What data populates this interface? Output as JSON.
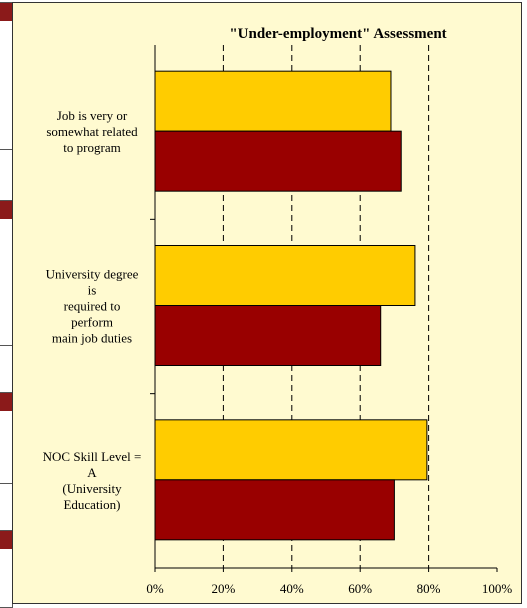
{
  "chart_data": {
    "type": "bar",
    "orientation": "horizontal",
    "title": "\"Under-employment\" Assessment",
    "categories": [
      [
        "Job is very or",
        "somewhat related",
        "to program"
      ],
      [
        "University degree",
        "is",
        "required to",
        "perform",
        "main job duties"
      ],
      [
        "NOC Skill Level =",
        "A",
        "(University",
        "Education)"
      ]
    ],
    "series": [
      {
        "color": "#ffcc00",
        "values": [
          69,
          76,
          79.5
        ]
      },
      {
        "color": "#990000",
        "values": [
          72,
          66,
          70
        ]
      }
    ],
    "xlim": [
      0,
      100
    ],
    "xticks": [
      "0%",
      "20%",
      "40%",
      "60%",
      "80%",
      "100%"
    ],
    "grid": "vertical-dashed",
    "legend": "none"
  }
}
